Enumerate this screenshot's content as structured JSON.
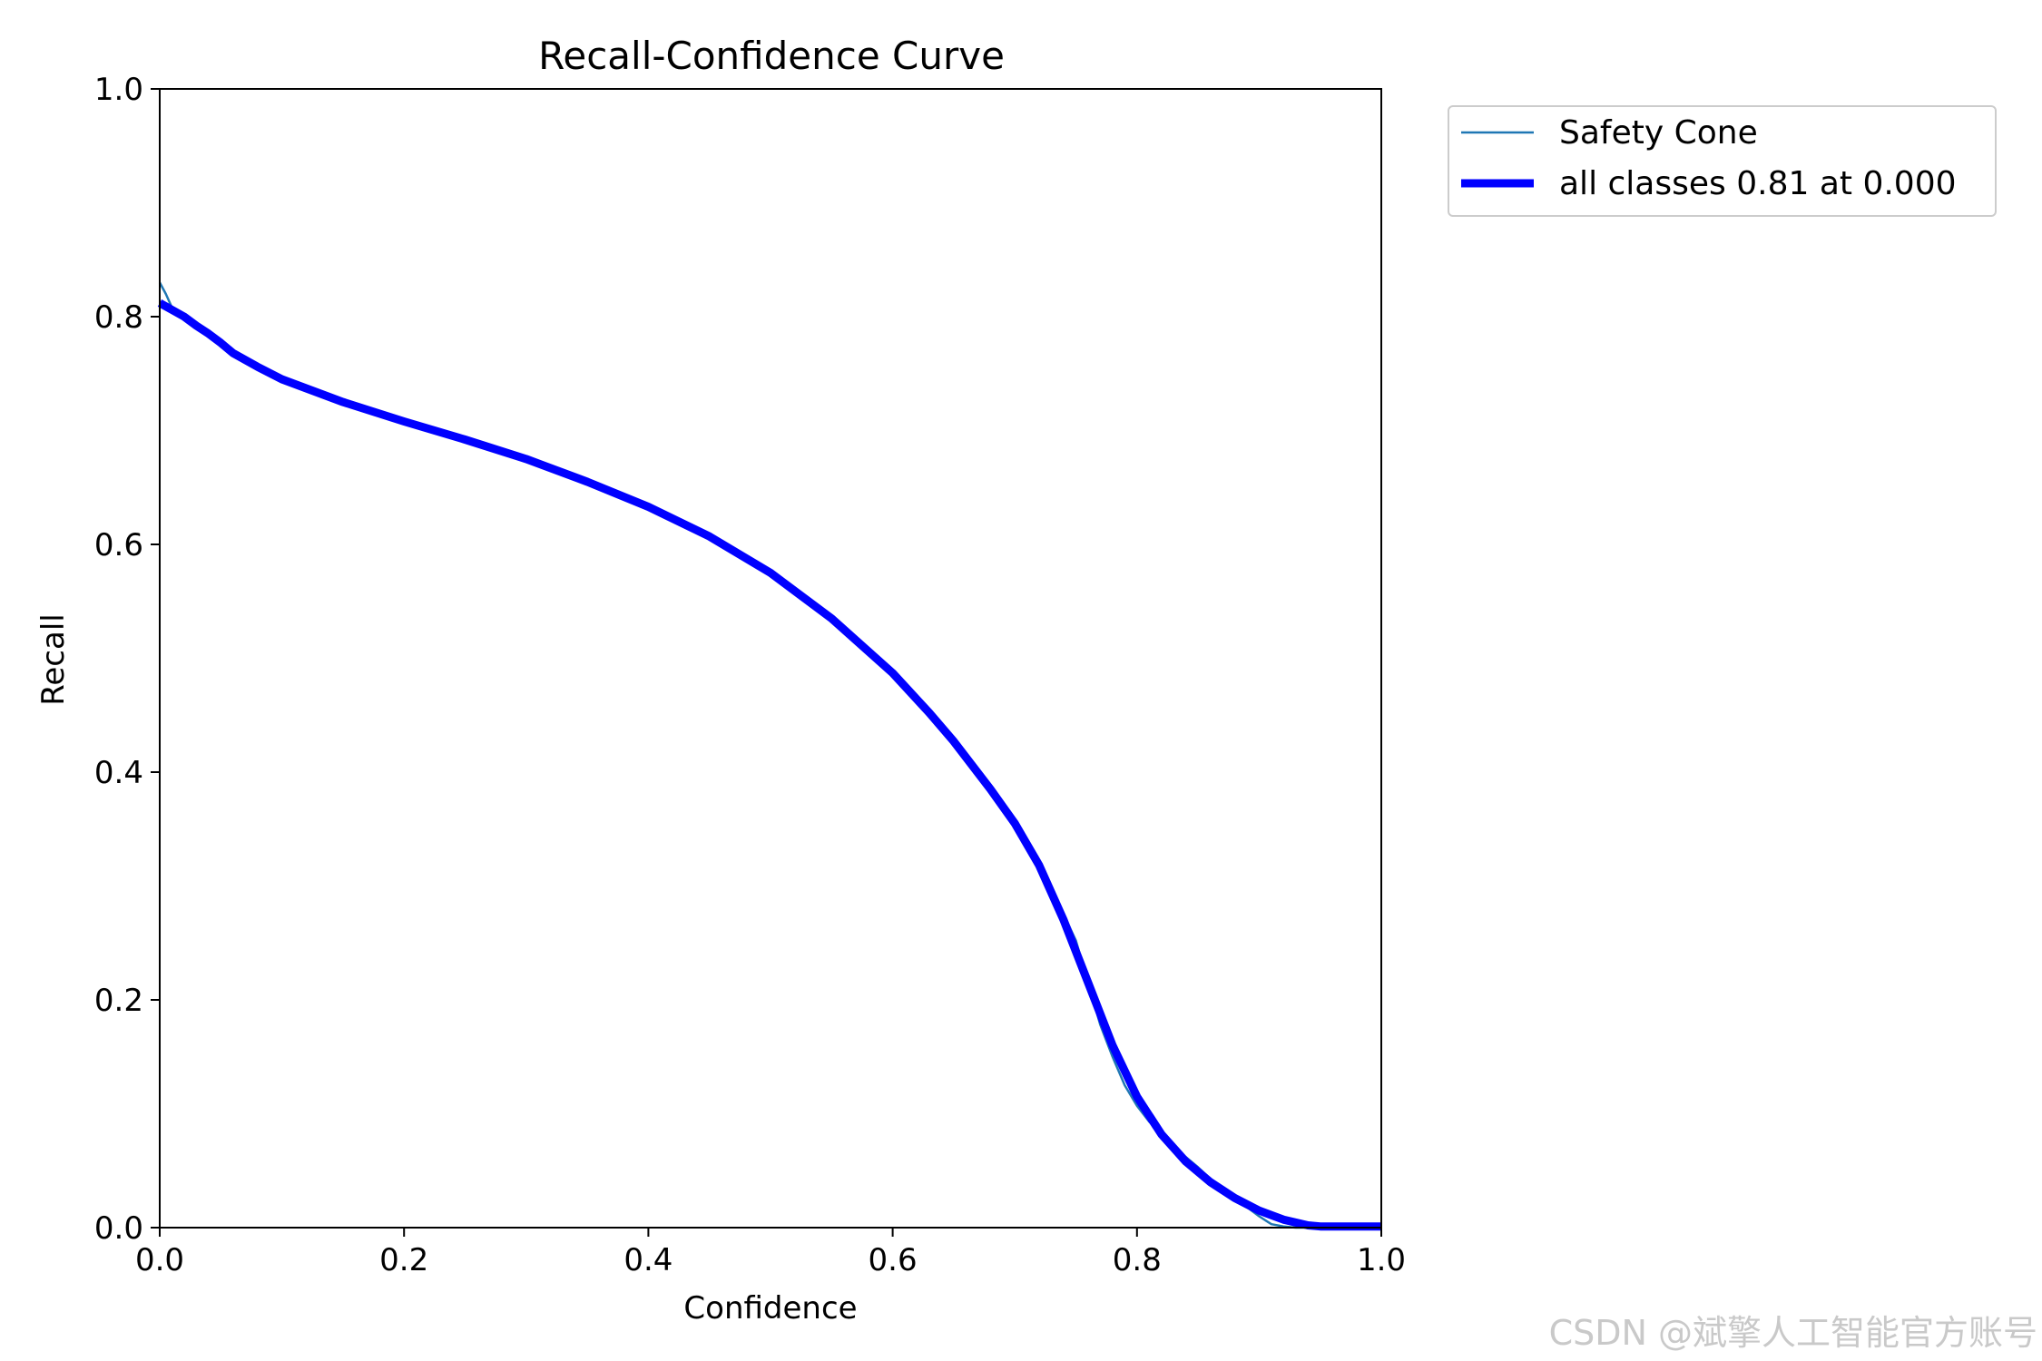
{
  "chart_data": {
    "type": "line",
    "title": "Recall-Confidence Curve",
    "xlabel": "Confidence",
    "ylabel": "Recall",
    "xlim": [
      0,
      1
    ],
    "ylim": [
      0,
      1
    ],
    "xticks": [
      "0.0",
      "0.2",
      "0.4",
      "0.6",
      "0.8",
      "1.0"
    ],
    "yticks": [
      "0.0",
      "0.2",
      "0.4",
      "0.6",
      "0.8",
      "1.0"
    ],
    "grid": false,
    "legend_placement": "outside-upper-right",
    "series": [
      {
        "name": "Safety Cone",
        "color": "#1f77b4",
        "style": "thin",
        "x": [
          0.0,
          0.005,
          0.01,
          0.02,
          0.03,
          0.04,
          0.05,
          0.06,
          0.08,
          0.1,
          0.15,
          0.2,
          0.25,
          0.3,
          0.35,
          0.4,
          0.45,
          0.5,
          0.55,
          0.6,
          0.63,
          0.65,
          0.68,
          0.7,
          0.72,
          0.73,
          0.74,
          0.75,
          0.76,
          0.77,
          0.78,
          0.79,
          0.8,
          0.81,
          0.82,
          0.83,
          0.84,
          0.85,
          0.86,
          0.87,
          0.88,
          0.89,
          0.9,
          0.91,
          0.92,
          0.93,
          0.95,
          1.0
        ],
        "y": [
          0.83,
          0.82,
          0.808,
          0.8,
          0.79,
          0.785,
          0.775,
          0.768,
          0.756,
          0.745,
          0.725,
          0.708,
          0.692,
          0.675,
          0.655,
          0.633,
          0.607,
          0.575,
          0.535,
          0.487,
          0.452,
          0.427,
          0.385,
          0.355,
          0.315,
          0.298,
          0.275,
          0.252,
          0.215,
          0.178,
          0.15,
          0.125,
          0.107,
          0.093,
          0.082,
          0.07,
          0.062,
          0.053,
          0.043,
          0.035,
          0.027,
          0.018,
          0.01,
          0.003,
          0.001,
          0.0,
          0.0,
          0.0
        ]
      },
      {
        "name": "all classes 0.81 at 0.000",
        "color": "#0000ff",
        "style": "thick",
        "x": [
          0.0,
          0.01,
          0.02,
          0.03,
          0.04,
          0.05,
          0.06,
          0.08,
          0.1,
          0.15,
          0.2,
          0.25,
          0.3,
          0.35,
          0.4,
          0.45,
          0.5,
          0.55,
          0.6,
          0.63,
          0.65,
          0.68,
          0.7,
          0.72,
          0.74,
          0.76,
          0.78,
          0.8,
          0.82,
          0.84,
          0.86,
          0.88,
          0.9,
          0.92,
          0.94,
          0.95,
          1.0
        ],
        "y": [
          0.812,
          0.806,
          0.8,
          0.792,
          0.785,
          0.777,
          0.768,
          0.756,
          0.745,
          0.725,
          0.708,
          0.692,
          0.675,
          0.655,
          0.633,
          0.607,
          0.575,
          0.535,
          0.487,
          0.452,
          0.427,
          0.385,
          0.355,
          0.318,
          0.27,
          0.215,
          0.16,
          0.115,
          0.082,
          0.058,
          0.04,
          0.026,
          0.015,
          0.007,
          0.002,
          0.001,
          0.001
        ]
      }
    ]
  },
  "watermark": "CSDN @斌擎人工智能官方账号"
}
